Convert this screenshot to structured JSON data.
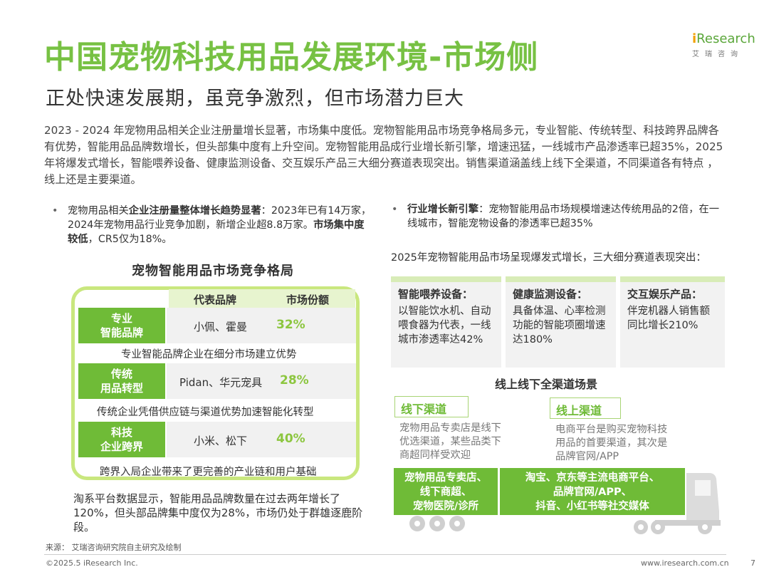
{
  "title": "中国宠物科技用品发展环境-市场侧",
  "subtitle": "正处快速发展期，虽竞争激烈，但市场潜力巨大",
  "logo": {
    "main_prefix": "i",
    "main_rest": "Research",
    "sub": "艾瑞咨询"
  },
  "summary": "2023 - 2024 年宠物用品相关企业注册量增长显著，市场集中度低。宠物智能用品市场竞争格局多元，专业智能、传统转型、科技跨界品牌各有优势，智能用品品牌数增长，但头部集中度有上升空间。宠物智能用品成行业增长新引擎，增速迅猛，一线城市产品渗透率已超35%，2025 年将爆发式增长，智能喂养设备、健康监测设备、交互娱乐产品三大细分赛道表现突出。销售渠道涵盖线上线下全渠道，不同渠道各有特点 ，线上还是主要渠道。",
  "bullet_left": {
    "dot": "•",
    "p1": "宠物用品相关",
    "b1": "企业注册量整体增长趋势显著",
    "p2": "：2023年已有14万家，2024年宠物用品行业竞争加剧，新增企业超8.8万家。",
    "b2": "市场集中度较低",
    "p3": "，CR5仅为18%。"
  },
  "bullet_right": {
    "dot": "•",
    "b1": "行业增长新引擎",
    "p1": "：宠物智能用品市场规模增速达传统用品的2倍，在一线城市，智能宠物设备的渗透率已超35%"
  },
  "competition": {
    "title": "宠物智能用品市场竞争格局",
    "header_brand": "代表品牌",
    "header_share": "市场份额",
    "rows": [
      {
        "cat_line1": "专业",
        "cat_line2": "智能品牌",
        "brands": "小佩、霍曼",
        "share": "32%",
        "note": "专业智能品牌企业在细分市场建立优势"
      },
      {
        "cat_line1": "传统",
        "cat_line2": "用品转型",
        "brands": "Pidan、华元宠具",
        "share": "28%",
        "note": "传统企业凭借供应链与渠道优势加速智能化转型"
      },
      {
        "cat_line1": "科技",
        "cat_line2": "企业跨界",
        "brands": "小米、松下",
        "share": "40%",
        "note": "跨界入局企业带来了更完善的产业链和用户基础"
      }
    ]
  },
  "bottom_text": "淘系平台数据显示，智能用品品牌数量在过去两年增长了120%，但头部品牌集中度仅为28%，市场仍处于群雄逐鹿阶段。",
  "trend_text": "2025年宠物智能用品市场呈现爆发式增长，三大细分赛道表现突出：",
  "segments": [
    {
      "heading": "智能喂养设备：",
      "text": "以智能饮水机、自动喂食器为代表，一线城市渗透率达42%"
    },
    {
      "heading": "健康监测设备：",
      "text": "具备体温、心率检测功能的智能项圈增速达180%"
    },
    {
      "heading": "交互娱乐产品：",
      "text": "伴宠机器人销售额同比增长210%"
    }
  ],
  "channels": {
    "title": "线上线下全渠道场景",
    "offline_label": "线下渠道",
    "offline_text": "宠物用品专卖店是线下优选渠道，某些品类下商超同样受欢迎",
    "online_label": "线上渠道",
    "online_text": "电商平台是购买宠物科技用品的首要渠道，其次是品牌官网/APP",
    "truck_left": [
      "宠物用品专卖店、",
      "线下商超、",
      "宠物医院/诊所"
    ],
    "truck_right": [
      "淘宝、京东等主流电商平台、",
      "品牌官网/APP、",
      "抖音、小红书等社交媒体"
    ]
  },
  "source": "来源： 艾瑞咨询研究院自主研究及绘制",
  "footer": {
    "left": "©2025.5 iResearch Inc.",
    "url": "www.iresearch.com.cn",
    "page": "7"
  },
  "colors": {
    "title_green": "#77c143",
    "accent_green": "#6fbb37",
    "light_green": "#c9e77e"
  }
}
